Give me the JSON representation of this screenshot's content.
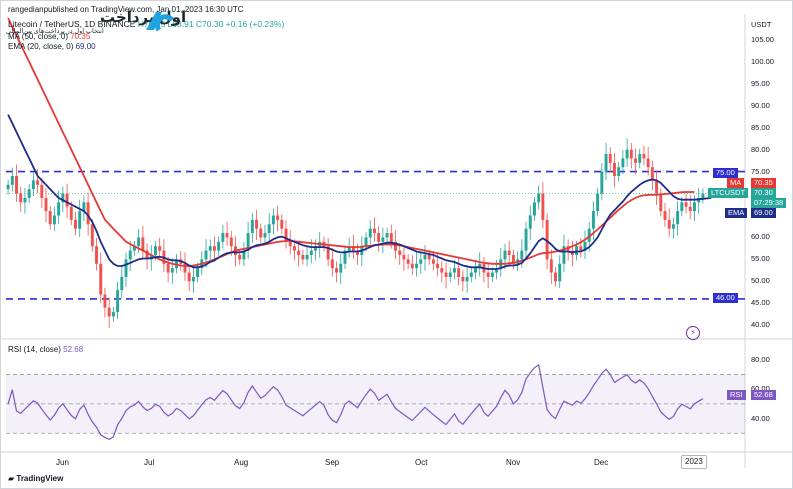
{
  "header": {
    "publisher_line": "rangedianpublished on TradingView.com, Jan 01, 2023 16:30 UTC",
    "symbol": "Litecoin / TetherUS, 1D BINANCE",
    "ohlc": "H70.65  L68.91  C70.30  +0.16 (+0.23%)",
    "ma_line_label": "MA (50, close, 0)",
    "ma_value": "70.35",
    "ema_line_label": "EMA (20, close, 0)",
    "ema_value": "69.00"
  },
  "logo": {
    "text": "اول پرداخت",
    "subtitle": "انتخاب اول در پرداخت‌های بین‌المللی"
  },
  "price_axis": {
    "currency": "USDT",
    "ticks": [
      "105.00",
      "100.00",
      "95.00",
      "90.00",
      "85.00",
      "80.00",
      "75.00",
      "70.00",
      "65.00",
      "60.00",
      "55.00",
      "50.00",
      "45.00",
      "40.00"
    ]
  },
  "badges": {
    "level_top": "75.00",
    "ma_tag": "MA",
    "ma_value": "70.35",
    "symbol_tag": "LTCUSDT",
    "last_price": "70.30",
    "countdown": "07:29:38",
    "ema_tag": "EMA",
    "ema_value": "69.00",
    "level_bottom": "46.00"
  },
  "rsi": {
    "label": "RSI (14, close)",
    "value": "52.68",
    "tag": "RSI",
    "ticks": [
      "80.00",
      "60.00",
      "40.00"
    ]
  },
  "time_axis": {
    "months": [
      "Jun",
      "Jul",
      "Aug",
      "Sep",
      "Oct",
      "Nov",
      "Dec"
    ],
    "year": "2023"
  },
  "brand": "TradingView",
  "colors": {
    "up": "#26a69a",
    "down": "#ef5350",
    "ma": "#e53935",
    "ema": "#1f2d8a",
    "level": "#2f2fd0",
    "rsi": "#7e57c2"
  },
  "chart_data": {
    "type": "candlestick",
    "support_level": 46.0,
    "resistance_level": 75.0,
    "ylim": [
      38,
      110
    ],
    "closes": [
      72,
      74,
      70,
      68,
      69,
      71,
      73,
      72,
      69,
      66,
      63,
      65,
      68,
      70,
      67,
      64,
      62,
      66,
      68,
      63,
      58,
      54,
      47,
      44,
      42,
      43,
      48,
      51,
      55,
      57,
      58,
      60,
      57,
      55,
      56,
      58,
      57,
      54,
      52,
      53,
      55,
      54,
      52,
      50,
      51,
      53,
      55,
      57,
      58,
      57,
      59,
      61,
      60,
      58,
      56,
      55,
      57,
      61,
      64,
      62,
      60,
      61,
      63,
      65,
      64,
      62,
      59,
      58,
      57,
      56,
      55,
      56,
      57,
      58,
      59,
      58,
      55,
      53,
      52,
      54,
      57,
      58,
      57,
      56,
      58,
      60,
      62,
      61,
      59,
      60,
      61,
      59,
      57,
      56,
      55,
      54,
      53,
      54,
      55,
      56,
      55,
      54,
      53,
      52,
      51,
      52,
      53,
      51,
      50,
      51,
      52,
      53,
      54,
      52,
      51,
      52,
      53,
      55,
      57,
      56,
      54,
      55,
      57,
      62,
      65,
      68,
      70,
      64,
      55,
      52,
      50,
      54,
      58,
      57,
      56,
      58,
      57,
      59,
      62,
      66,
      70,
      75,
      79,
      77,
      74,
      76,
      78,
      80,
      78,
      77,
      79,
      78,
      76,
      73,
      70,
      66,
      64,
      62,
      63,
      66,
      68,
      67,
      66,
      68,
      69,
      70
    ],
    "ma50": [
      110,
      108,
      106,
      104,
      102,
      100,
      98,
      96,
      94,
      92,
      90,
      88,
      86,
      84,
      82,
      80,
      78,
      76,
      74,
      72,
      70,
      68,
      66,
      64,
      63,
      62,
      61,
      60,
      59,
      58.5,
      58,
      57.5,
      57,
      56.5,
      56,
      55.5,
      55,
      54.6,
      54.3,
      54,
      53.8,
      53.6,
      53.5,
      53.5,
      53.6,
      53.8,
      54,
      54.3,
      54.6,
      55,
      55.4,
      55.8,
      56.2,
      56.6,
      57,
      57.2,
      57.4,
      57.6,
      57.8,
      58,
      58.2,
      58.4,
      58.6,
      58.8,
      59,
      59.1,
      59.2,
      59.2,
      59.1,
      59,
      58.9,
      58.8,
      58.7,
      58.6,
      58.5,
      58.4,
      58.3,
      58.2,
      58.1,
      58,
      57.9,
      57.8,
      57.8,
      57.8,
      57.9,
      58,
      58.1,
      58.2,
      58.3,
      58.4,
      58.4,
      58.4,
      58.3,
      58.2,
      58,
      57.8,
      57.6,
      57.4,
      57.2,
      57,
      56.8,
      56.6,
      56.4,
      56.2,
      56,
      55.8,
      55.6,
      55.4,
      55.2,
      55,
      54.8,
      54.6,
      54.4,
      54.2,
      54.1,
      54,
      54,
      54,
      54,
      54.1,
      54.2,
      54.4,
      54.7,
      55,
      55.4,
      55.8,
      56.2,
      56.4,
      56.5,
      56.6,
      56.8,
      57,
      57.3,
      57.6,
      58,
      58.4,
      58.9,
      59.5,
      60.2,
      61,
      61.8,
      62.7,
      63.6,
      64.5,
      65.4,
      66.3,
      67.1,
      67.9,
      68.5,
      69,
      69.4,
      69.6,
      69.7,
      69.7,
      69.7,
      69.8,
      69.9,
      70,
      70.1,
      70.2,
      70.3,
      70.35,
      70.35,
      70.35
    ],
    "ema20": [
      88,
      86,
      84,
      82,
      80,
      78,
      76,
      74,
      73,
      72,
      71,
      70,
      69,
      68.5,
      68,
      67.5,
      67,
      66.5,
      66,
      65,
      63.5,
      61.5,
      59,
      57,
      55,
      54,
      53.5,
      53.5,
      53.8,
      54.2,
      54.6,
      55,
      55.2,
      55.2,
      55.3,
      55.5,
      55.6,
      55.4,
      55,
      54.8,
      54.8,
      54.6,
      54.2,
      53.6,
      53.2,
      53.2,
      53.4,
      53.8,
      54.4,
      54.8,
      55.4,
      56,
      56.4,
      56.6,
      56.6,
      56.6,
      56.8,
      57.2,
      57.8,
      58.2,
      58.4,
      58.6,
      59,
      59.6,
      60,
      60.2,
      59.8,
      59.4,
      59,
      58.6,
      58.2,
      58,
      57.8,
      57.8,
      57.8,
      57.8,
      57.6,
      57.2,
      56.8,
      56.6,
      56.6,
      56.8,
      56.8,
      56.8,
      57,
      57.4,
      57.8,
      58.2,
      58.4,
      58.6,
      58.8,
      58.8,
      58.6,
      58.4,
      58,
      57.6,
      57.2,
      56.8,
      56.6,
      56.4,
      56.2,
      56,
      55.6,
      55.2,
      54.8,
      54.6,
      54.4,
      54,
      53.6,
      53.4,
      53.2,
      53.2,
      53.2,
      53,
      52.8,
      52.8,
      52.8,
      53,
      53.4,
      53.6,
      53.6,
      53.8,
      54.2,
      55.2,
      56.4,
      57.8,
      59.2,
      59.8,
      59.2,
      58.4,
      57.4,
      56.8,
      56.8,
      56.8,
      56.6,
      56.8,
      56.8,
      57.2,
      57.8,
      58.8,
      60,
      61.8,
      63.6,
      65.2,
      66.2,
      67.2,
      68.2,
      69.4,
      70.4,
      71.2,
      72,
      72.6,
      73,
      73.2,
      73,
      72.4,
      71.4,
      70.4,
      69.4,
      68.8,
      68.6,
      68.6,
      68.6,
      68.6,
      68.7,
      68.8,
      68.9,
      69
    ]
  }
}
